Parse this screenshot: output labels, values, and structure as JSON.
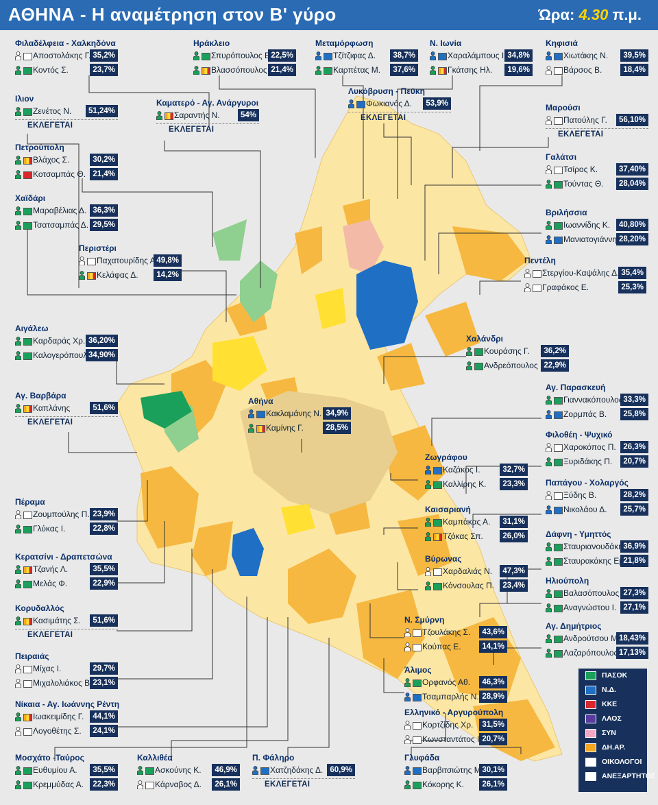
{
  "header": {
    "title": "ΑΘΗΝΑ - Η αναμέτρηση στον Β' γύρο",
    "time_label": "Ώρα:",
    "time_value": "4.30",
    "time_suffix": "π.μ."
  },
  "elected_label": "ΕΚΛΕΓΕΤΑΙ",
  "legend": [
    {
      "label": "ΠΑΣΟΚ",
      "color": "#1aa05a"
    },
    {
      "label": "Ν.Δ.",
      "color": "#1f6fc4"
    },
    {
      "label": "ΚΚΕ",
      "color": "#d8282d"
    },
    {
      "label": "ΛΑΟΣ",
      "color": "#5b3aa0"
    },
    {
      "label": "ΣΥΝ",
      "color": "#f3a9c6"
    },
    {
      "label": "ΔΗ.ΑΡ.",
      "color": "#f5a623"
    },
    {
      "label": "ΟΙΚΟΛΟΓΟΙ",
      "color": "#ffffff"
    },
    {
      "label": "ΑΝΕΞΑΡΤΗΤΟΣ",
      "color": "#ffffff"
    }
  ],
  "municipalities": [
    {
      "name": "Φιλαδέλφεια - Χαλκηδόνα",
      "candidates": [
        {
          "name": "Αποστολάκης Γ.",
          "pct": "35,2%",
          "flag": "ind"
        },
        {
          "name": "Κοντός Σ.",
          "pct": "23,7%",
          "flag": "pasok"
        }
      ]
    },
    {
      "name": "Ηράκλειο",
      "candidates": [
        {
          "name": "Σπυρόπουλος Επ.",
          "pct": "22,5%",
          "flag": "pasok"
        },
        {
          "name": "Βλασσόπουλος Π.",
          "pct": "21,4%",
          "flag": "dimar"
        }
      ]
    },
    {
      "name": "Μεταμόρφωση",
      "candidates": [
        {
          "name": "Τζίτζιφας Δ.",
          "pct": "38,7%",
          "flag": "nd"
        },
        {
          "name": "Καρπέτας Μ.",
          "pct": "37,6%",
          "flag": "pasok"
        }
      ]
    },
    {
      "name": "Ν. Ιωνία",
      "candidates": [
        {
          "name": "Χαραλάμπους Ι.",
          "pct": "34,8%",
          "flag": "nd"
        },
        {
          "name": "Γκάτσης Ηλ.",
          "pct": "19,6%",
          "flag": "dimar"
        }
      ]
    },
    {
      "name": "Κηφισιά",
      "candidates": [
        {
          "name": "Χιωτάκης Ν.",
          "pct": "39,5%",
          "flag": "nd"
        },
        {
          "name": "Βάρσος Β.",
          "pct": "18,4%",
          "flag": "ind"
        }
      ]
    },
    {
      "name": "Ιλιον",
      "elected": true,
      "candidates": [
        {
          "name": "Ζενέτος Ν.",
          "pct": "51,24%",
          "flag": "pasok"
        }
      ]
    },
    {
      "name": "Καματερό - Αγ. Ανάργυροι",
      "elected": true,
      "candidates": [
        {
          "name": "Σαραντής Ν.",
          "pct": "54%",
          "flag": "dimar"
        }
      ]
    },
    {
      "name": "Λυκόβρυση - Πεύκη",
      "elected": true,
      "candidates": [
        {
          "name": "Φωκιανός Δ.",
          "pct": "53,9%",
          "flag": "nd"
        }
      ]
    },
    {
      "name": "Μαρούσι",
      "elected": true,
      "candidates": [
        {
          "name": "Πατούλης Γ.",
          "pct": "56,10%",
          "flag": "ind"
        }
      ]
    },
    {
      "name": "Πετρούπολη",
      "candidates": [
        {
          "name": "Βλάχος Σ.",
          "pct": "30,2%",
          "flag": "dimar"
        },
        {
          "name": "Κοτσαμπάς Θ.",
          "pct": "21,4%",
          "flag": "kke"
        }
      ]
    },
    {
      "name": "Γαλάτσι",
      "candidates": [
        {
          "name": "Τσίρος Κ.",
          "pct": "37,40%",
          "flag": "ind"
        },
        {
          "name": "Τούντας Θ.",
          "pct": "28,04%",
          "flag": "pasok"
        }
      ]
    },
    {
      "name": "Χαϊδάρι",
      "candidates": [
        {
          "name": "Μαραβέλιας Δ.",
          "pct": "36,3%",
          "flag": "pasok"
        },
        {
          "name": "Τσατσαμπάς Δ.",
          "pct": "29,5%",
          "flag": "pasok"
        }
      ]
    },
    {
      "name": "Βριλήσσια",
      "candidates": [
        {
          "name": "Ιωαννίδης Κ.",
          "pct": "40,80%",
          "flag": "pasok"
        },
        {
          "name": "Μανιατογιάννης Ξ.",
          "pct": "28,20%",
          "flag": "nd"
        }
      ]
    },
    {
      "name": "Περιστέρι",
      "candidates": [
        {
          "name": "Παχατουρίδης Α.",
          "pct": "49,8%",
          "flag": "ind"
        },
        {
          "name": "Κελάφας Δ.",
          "pct": "14,2%",
          "flag": "dimar"
        }
      ]
    },
    {
      "name": "Πεντέλη",
      "candidates": [
        {
          "name": "Στεργίου-Καψάλης Δ.",
          "pct": "35,4%",
          "flag": "ind"
        },
        {
          "name": "Γραφάκος Ε.",
          "pct": "25,3%",
          "flag": "ind"
        }
      ]
    },
    {
      "name": "Αιγάλεω",
      "candidates": [
        {
          "name": "Καρδαράς Χρ.",
          "pct": "36,20%",
          "flag": "pasok"
        },
        {
          "name": "Καλογερόπουλος Δ.",
          "pct": "34,90%",
          "flag": "pasok"
        }
      ]
    },
    {
      "name": "Χαλάνδρι",
      "candidates": [
        {
          "name": "Κουράσης Γ.",
          "pct": "36,2%",
          "flag": "pasok"
        },
        {
          "name": "Ανδρεόπουλος Ε.",
          "pct": "22,9%",
          "flag": "pasok"
        }
      ]
    },
    {
      "name": "Αγ. Βαρβάρα",
      "elected": true,
      "candidates": [
        {
          "name": "Καπλάνης",
          "pct": "51,6%",
          "flag": "dimar"
        }
      ]
    },
    {
      "name": "Αθήνα",
      "candidates": [
        {
          "name": "Κακλαμάνης Ν.",
          "pct": "34,9%",
          "flag": "nd"
        },
        {
          "name": "Καμίνης Γ.",
          "pct": "28,5%",
          "flag": "dimar"
        }
      ]
    },
    {
      "name": "Αγ. Παρασκευή",
      "candidates": [
        {
          "name": "Γιαννακόπουλος Β.",
          "pct": "33,3%",
          "flag": "pasok"
        },
        {
          "name": "Ζορμπάς Β.",
          "pct": "25,8%",
          "flag": "nd"
        }
      ]
    },
    {
      "name": "Φιλοθέη - Ψυχικό",
      "candidates": [
        {
          "name": "Χαροκόπος Π.",
          "pct": "26,3%",
          "flag": "ind"
        },
        {
          "name": "Ξυριδάκης Π.",
          "pct": "20,7%",
          "flag": "pasok"
        }
      ]
    },
    {
      "name": "Ζωγράφου",
      "candidates": [
        {
          "name": "Καζάκος Ι.",
          "pct": "32,7%",
          "flag": "nd"
        },
        {
          "name": "Καλλίρης Κ.",
          "pct": "23,3%",
          "flag": "pasok"
        }
      ]
    },
    {
      "name": "Παπάγου - Χολαργός",
      "candidates": [
        {
          "name": "Ξύδης Β.",
          "pct": "28,2%",
          "flag": "ind"
        },
        {
          "name": "Νικολάου Δ.",
          "pct": "25,7%",
          "flag": "nd"
        }
      ]
    },
    {
      "name": "Πέραμα",
      "candidates": [
        {
          "name": "Ζουμπούλης Π.",
          "pct": "23,9%",
          "flag": "ind"
        },
        {
          "name": "Γλύκας Ι.",
          "pct": "22,8%",
          "flag": "pasok"
        }
      ]
    },
    {
      "name": "Καισαριανή",
      "candidates": [
        {
          "name": "Καμπάκας Α.",
          "pct": "31,1%",
          "flag": "pasok"
        },
        {
          "name": "Τζόκας Σπ.",
          "pct": "26,0%",
          "flag": "dimar"
        }
      ]
    },
    {
      "name": "Δάφνη - Υμηττός",
      "candidates": [
        {
          "name": "Σταυριανουδάκης Μ.",
          "pct": "36,9%",
          "flag": "pasok"
        },
        {
          "name": "Σταυρακάκης Εμ.",
          "pct": "21,8%",
          "flag": "pasok"
        }
      ]
    },
    {
      "name": "Κερατσίνι - Δραπετσώνα",
      "candidates": [
        {
          "name": "Τζανής Λ.",
          "pct": "35,5%",
          "flag": "dimar"
        },
        {
          "name": "Μελάς Φ.",
          "pct": "22,9%",
          "flag": "pasok"
        }
      ]
    },
    {
      "name": "Βύρωνας",
      "candidates": [
        {
          "name": "Χαρδαλιάς Ν.",
          "pct": "47,3%",
          "flag": "ind"
        },
        {
          "name": "Κόνσουλας Π.",
          "pct": "23,4%",
          "flag": "pasok"
        }
      ]
    },
    {
      "name": "Ηλιούπολη",
      "candidates": [
        {
          "name": "Βαλασόπουλος Β.",
          "pct": "27,3%",
          "flag": "pasok"
        },
        {
          "name": "Αναγνώστου Ι.",
          "pct": "27,1%",
          "flag": "pasok"
        }
      ]
    },
    {
      "name": "Κορυδαλλός",
      "elected": true,
      "candidates": [
        {
          "name": "Κασιμάτης Σ.",
          "pct": "51,6%",
          "flag": "dimar"
        }
      ]
    },
    {
      "name": "Ν. Σμύρνη",
      "candidates": [
        {
          "name": "Τζουλάκης Σ.",
          "pct": "43,6%",
          "flag": "ind"
        },
        {
          "name": "Κούπας Ε.",
          "pct": "14,1%",
          "flag": "ind"
        }
      ]
    },
    {
      "name": "Αγ. Δημήτριος",
      "candidates": [
        {
          "name": "Ανδρούτσου Μ.",
          "pct": "18,43%",
          "flag": "pasok"
        },
        {
          "name": "Λαζαρόπουλος Ν.",
          "pct": "17,13%",
          "flag": "pasok"
        }
      ]
    },
    {
      "name": "Πειραιάς",
      "candidates": [
        {
          "name": "Μίχας Ι.",
          "pct": "29,7%",
          "flag": "ind"
        },
        {
          "name": "Μιχαλολιάκος Β.",
          "pct": "23,1%",
          "flag": "ind"
        }
      ]
    },
    {
      "name": "Άλιμος",
      "candidates": [
        {
          "name": "Ορφανός Αθ.",
          "pct": "46,3%",
          "flag": "pasok"
        },
        {
          "name": "Τσαμπαρλής Ν.",
          "pct": "28,9%",
          "flag": "nd"
        }
      ]
    },
    {
      "name": "Νίκαια - Αγ. Ιωάννης Ρέντη",
      "candidates": [
        {
          "name": "Ιωακειμίδης Γ.",
          "pct": "44,1%",
          "flag": "dimar"
        },
        {
          "name": "Λογοθέτης Σ.",
          "pct": "24,1%",
          "flag": "ind"
        }
      ]
    },
    {
      "name": "Ελληνικό - Αργυρούπολη",
      "candidates": [
        {
          "name": "Κορτζίδης Χρ.",
          "pct": "31,5%",
          "flag": "ind"
        },
        {
          "name": "Κωνσταντάτος Ι.",
          "pct": "20,7%",
          "flag": "ind"
        }
      ]
    },
    {
      "name": "Μοσχάτο -Ταύρος",
      "candidates": [
        {
          "name": "Ευθυμίου Α.",
          "pct": "35,5%",
          "flag": "pasok"
        },
        {
          "name": "Κρεμμύδας Α.",
          "pct": "22,3%",
          "flag": "pasok"
        }
      ]
    },
    {
      "name": "Καλλιθέα",
      "candidates": [
        {
          "name": "Ασκούνης Κ.",
          "pct": "46,9%",
          "flag": "pasok"
        },
        {
          "name": "Κάρναβος Δ.",
          "pct": "26,1%",
          "flag": "ind"
        }
      ]
    },
    {
      "name": "Π. Φάληρο",
      "elected": true,
      "candidates": [
        {
          "name": "Χατζηδάκης Δ.",
          "pct": "60,9%",
          "flag": "nd"
        }
      ]
    },
    {
      "name": "Γλυφάδα",
      "candidates": [
        {
          "name": "Βαρβιτσιώτης Μ.",
          "pct": "30,1%",
          "flag": "nd"
        },
        {
          "name": "Κόκορης Κ.",
          "pct": "26,1%",
          "flag": "pasok"
        }
      ]
    }
  ]
}
